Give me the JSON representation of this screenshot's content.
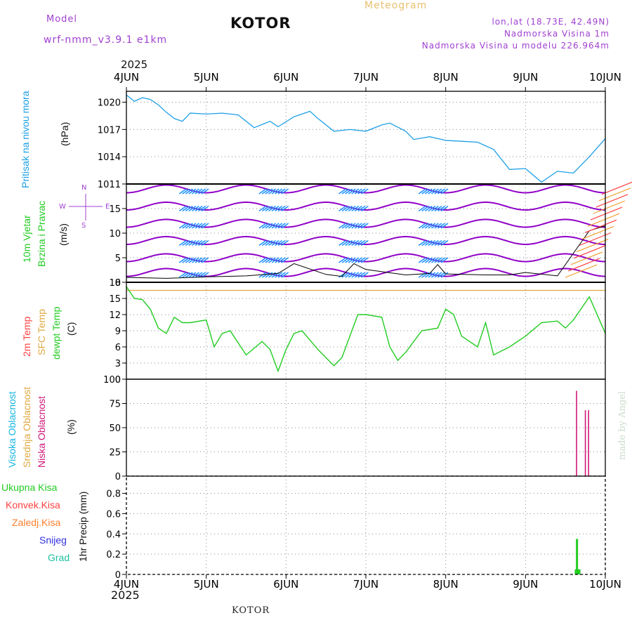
{
  "header": {
    "model_label": "Model",
    "model_name": "wrf-nmm_v3.9.1 e1km",
    "location": "KOTOR",
    "meteogram_label": "Meteogram",
    "coords": "lon,lat (18.73E, 42.49N)",
    "altitude": "Nadmorska Visina 1m",
    "model_altitude": "Nadmorska Visina u modelu 226.964m",
    "year_top": "2025",
    "year_bottom": "2025",
    "footer_location": "KOTOR",
    "credit": "made by Angel"
  },
  "colors": {
    "pressure": "#1ea0e6",
    "temp2m": "#ff4040",
    "sfc": "#e0a840",
    "dewpt": "#22cc22",
    "high_cloud": "#18b4e0",
    "mid_cloud": "#e0a840",
    "low_cloud": "#d01878",
    "precip_total": "#22cc22",
    "wind_purple": "#9000c8",
    "wind_blue": "#1e90ff"
  },
  "x_axis": {
    "labels": [
      "4JUN",
      "5JUN",
      "6JUN",
      "7JUN",
      "8JUN",
      "9JUN",
      "10JUN"
    ]
  },
  "panels": {
    "pressure": {
      "labels": [
        "Pritisak na nivou mora",
        "(hPa)"
      ]
    },
    "wind": {
      "labels": [
        "10m Vjetar",
        "Brzina i Pravac",
        "(m/s)"
      ],
      "compass": {
        "w": "W",
        "e": "E",
        "n": "N",
        "s": "S"
      }
    },
    "temperature": {
      "labels": [
        "2m Temp",
        "SFC Temp",
        "dewpt Temp",
        "(C)"
      ]
    },
    "cloud": {
      "labels": [
        "Visoka Oblacnost",
        "Srednja Oblacnost",
        "Niska Oblacnost",
        "(%)"
      ]
    },
    "precip": {
      "labels": [
        "1hr Precip (mm)"
      ],
      "legend": [
        "Ukupna Kisa",
        "Konvek.Kisa",
        "Zaledj.Kisa",
        "Snijeg",
        "Grad"
      ]
    }
  },
  "chart_data": [
    {
      "type": "line",
      "ylabel": "(hPa)",
      "yticks": [
        1011,
        1014,
        1017,
        1020
      ],
      "ylim": [
        1011,
        1021.2
      ],
      "x_days": [
        0,
        0.1,
        0.2,
        0.3,
        0.4,
        0.5,
        0.6,
        0.7,
        0.8,
        1.0,
        1.2,
        1.4,
        1.6,
        1.8,
        1.9,
        2.1,
        2.3,
        2.4,
        2.6,
        2.8,
        3.0,
        3.2,
        3.3,
        3.5,
        3.6,
        3.8,
        4.0,
        4.2,
        4.4,
        4.6,
        4.8,
        5.0,
        5.2,
        5.4,
        5.6,
        5.8,
        6.0
      ],
      "series": [
        {
          "values": [
            1020.8,
            1020.1,
            1020.5,
            1020.3,
            1019.7,
            1018.9,
            1018.2,
            1017.9,
            1018.8,
            1018.7,
            1018.8,
            1018.6,
            1017.2,
            1017.9,
            1017.3,
            1018.4,
            1019.0,
            1018.2,
            1016.8,
            1017.0,
            1016.8,
            1017.5,
            1017.7,
            1016.8,
            1015.9,
            1016.2,
            1015.8,
            1015.7,
            1015.6,
            1014.8,
            1012.6,
            1012.7,
            1011.2,
            1012.4,
            1012.2,
            1014.0,
            1016.0
          ]
        }
      ]
    },
    {
      "type": "line",
      "ylabel": "(m/s)",
      "yticks": [
        0,
        5,
        10,
        15
      ],
      "ylim": [
        0,
        20
      ],
      "x_days": [
        0,
        0.5,
        1.0,
        1.5,
        1.9,
        2.1,
        2.5,
        2.7,
        2.85,
        3.0,
        3.5,
        3.8,
        3.9,
        4.0,
        4.5,
        4.8,
        5.0,
        5.4,
        5.8,
        6.0
      ],
      "series": [
        {
          "values": [
            1.0,
            0.8,
            1.1,
            1.3,
            1.8,
            3.8,
            1.6,
            1.2,
            3.8,
            2.6,
            1.5,
            1.8,
            3.6,
            1.7,
            1.5,
            1.5,
            2.0,
            1.3,
            10.5,
            11.5
          ]
        }
      ]
    },
    {
      "type": "line",
      "ylabel": "(C)",
      "yticks": [
        0,
        3,
        6,
        9,
        12,
        15,
        18
      ],
      "ylim": [
        0,
        18
      ],
      "x_days": [
        0,
        0.1,
        0.2,
        0.3,
        0.4,
        0.5,
        0.6,
        0.7,
        0.8,
        1.0,
        1.1,
        1.2,
        1.3,
        1.5,
        1.7,
        1.8,
        1.9,
        2.0,
        2.1,
        2.2,
        2.4,
        2.5,
        2.6,
        2.7,
        2.9,
        3.0,
        3.2,
        3.3,
        3.4,
        3.5,
        3.7,
        3.9,
        4.0,
        4.1,
        4.2,
        4.4,
        4.5,
        4.6,
        4.8,
        5.0,
        5.2,
        5.4,
        5.5,
        5.6,
        5.8,
        6.0
      ],
      "series": [
        {
          "values": [
            17.2,
            15.0,
            14.8,
            13.0,
            9.5,
            8.5,
            11.5,
            10.5,
            10.5,
            11.0,
            6.0,
            8.5,
            9.0,
            4.5,
            7.0,
            5.5,
            1.5,
            5.5,
            8.5,
            9.0,
            5.5,
            4.0,
            2.5,
            4.0,
            12.0,
            12.0,
            11.5,
            6.0,
            3.5,
            5.0,
            9.0,
            9.5,
            13.0,
            12.0,
            8.0,
            6.0,
            10.5,
            4.5,
            6.0,
            8.0,
            10.5,
            10.8,
            9.5,
            11.0,
            15.3,
            8.5
          ]
        },
        {
          "values": [
            16.5,
            16.5,
            16.5,
            16.5,
            16.5,
            16.5,
            16.5,
            16.5,
            16.5,
            16.5,
            16.5,
            16.5,
            16.5,
            16.5,
            16.5,
            16.5,
            16.5,
            16.5,
            16.5,
            16.5,
            16.5,
            16.5,
            16.5,
            16.5,
            16.5,
            16.5,
            16.5,
            16.5,
            16.5,
            16.5,
            16.5,
            16.5,
            16.5,
            16.5,
            16.5,
            16.5,
            16.5,
            16.5,
            16.5,
            16.5,
            16.5,
            16.5,
            16.5,
            16.5,
            16.5,
            16.5
          ]
        }
      ]
    },
    {
      "type": "bar",
      "ylabel": "(%)",
      "yticks": [
        0,
        25,
        50,
        75,
        100
      ],
      "ylim": [
        0,
        100
      ],
      "x_days": [
        5.64,
        5.75,
        5.79
      ],
      "series": [
        {
          "values": [
            88,
            68,
            68
          ]
        }
      ]
    },
    {
      "type": "bar",
      "ylabel": "1hr Precip (mm)",
      "yticks": [
        0,
        0.2,
        0.4,
        0.6,
        0.8
      ],
      "ylim": [
        0,
        0.97
      ],
      "x_days": [
        5.63,
        5.645,
        5.66,
        5.675
      ],
      "series": [
        {
          "values": [
            0.05,
            0.35,
            0.05,
            0.05
          ]
        }
      ]
    }
  ]
}
